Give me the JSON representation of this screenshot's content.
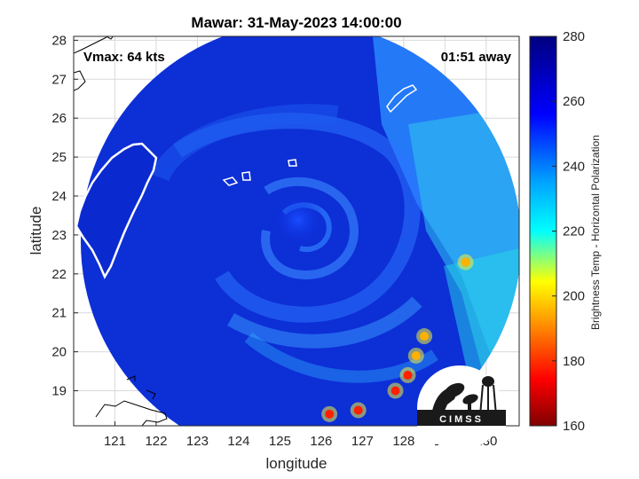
{
  "chart_data": {
    "type": "heatmap",
    "title": "Mawar: 31-May-2023 14:00:00",
    "xlabel": "longitude",
    "ylabel": "latitude",
    "xlim": [
      120.0,
      130.8
    ],
    "ylim": [
      18.1,
      28.1
    ],
    "xticks": [
      "121",
      "122",
      "123",
      "124",
      "125",
      "126",
      "127",
      "128",
      "129",
      "130"
    ],
    "yticks": [
      "28",
      "27",
      "26",
      "25",
      "24",
      "23",
      "22",
      "21",
      "20",
      "19"
    ],
    "grid": true,
    "annotations": {
      "vmax": "Vmax: 64 kts",
      "time_away": "01:51 away"
    },
    "storm_center": {
      "lon": 124.9,
      "lat": 23.6
    },
    "swath_center": {
      "lon": 125.4,
      "lat": 23.4
    },
    "colorbar": {
      "label": "Brightness Temp - Horizontal Polarization",
      "ticks": [
        "280",
        "260",
        "240",
        "220",
        "200",
        "180",
        "160"
      ],
      "range": [
        160,
        280
      ],
      "colors": [
        "#7f0000",
        "#ff0000",
        "#ffff00",
        "#00ffff",
        "#0000ff",
        "#00007f"
      ]
    },
    "warm_cells": [
      {
        "lon": 126.2,
        "lat": 18.4,
        "value": 178
      },
      {
        "lon": 126.9,
        "lat": 18.5,
        "value": 185
      },
      {
        "lon": 127.8,
        "lat": 19.0,
        "value": 182
      },
      {
        "lon": 128.1,
        "lat": 19.4,
        "value": 190
      },
      {
        "lon": 128.3,
        "lat": 19.9,
        "value": 205
      },
      {
        "lon": 128.5,
        "lat": 20.4,
        "value": 210
      },
      {
        "lon": 129.5,
        "lat": 22.3,
        "value": 212
      }
    ],
    "logo": "CIMSS"
  }
}
